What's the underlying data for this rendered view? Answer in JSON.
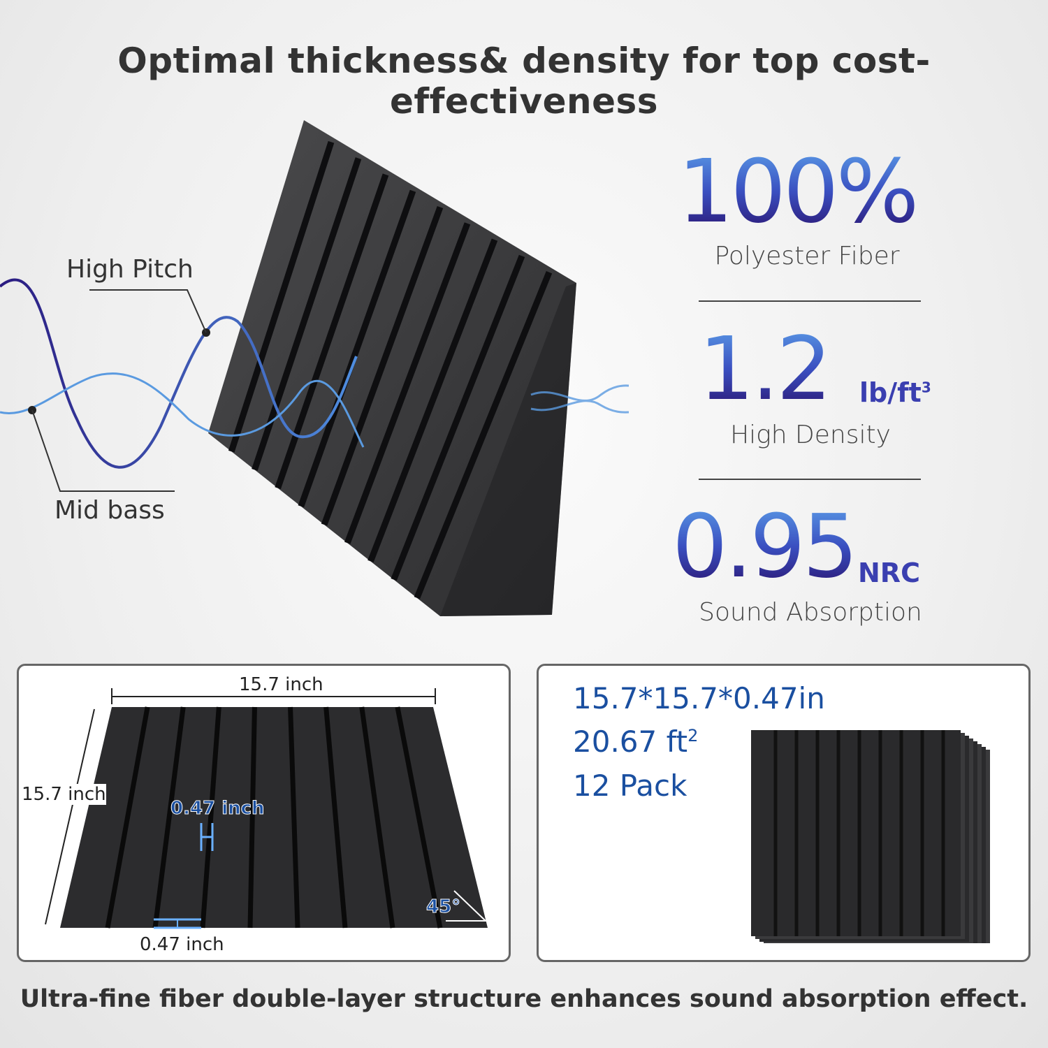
{
  "header": {
    "title": "Optimal thickness& density for top cost-effectiveness"
  },
  "waves": {
    "high_label": "High Pitch",
    "mid_label": "Mid bass"
  },
  "stats": [
    {
      "value": "100%",
      "unit": "",
      "label": "Polyester Fiber"
    },
    {
      "value": "1.2",
      "unit": "lb/ft",
      "unit_sup": "3",
      "label": "High Density"
    },
    {
      "value": "0.95",
      "unit": "NRC",
      "label": "Sound Absorption"
    }
  ],
  "dimensions": {
    "width": "15.7 inch",
    "height": "15.7 inch",
    "depth": "0.47 inch",
    "slat_width": "0.47 inch",
    "angle": "45°"
  },
  "specs": {
    "size": "15.7*15.7*0.47in",
    "area": "20.67 ft",
    "area_sup": "2",
    "pack": "12 Pack"
  },
  "footer": {
    "text": "Ultra-fine fiber double-layer structure enhances sound absorption effect."
  },
  "colors": {
    "accent_blue": "#1a4fa0",
    "gradient_top": "#5a9ae6",
    "gradient_bottom": "#2a1470",
    "panel": "#3a3a3c"
  }
}
